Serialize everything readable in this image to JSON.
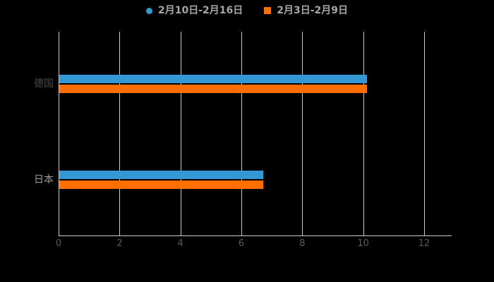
{
  "chart_data": {
    "type": "bar",
    "orientation": "horizontal",
    "title": "",
    "categories": [
      "德国",
      "日本"
    ],
    "series": [
      {
        "name": "2月10日-2月16日",
        "marker": "circle",
        "color": "#3398d4",
        "values": [
          10.1,
          6.7
        ]
      },
      {
        "name": "2月3日-2月9日",
        "marker": "square",
        "color": "#ff6e00",
        "values": [
          10.1,
          6.7
        ]
      }
    ],
    "xlim": [
      0,
      12
    ],
    "xticks": [
      "0",
      "2",
      "4",
      "6",
      "8",
      "10",
      "12"
    ],
    "grid": true,
    "legend_position": "top",
    "background_color": "#000000",
    "gridline_color": "#c9c9c9",
    "axis_line_color": "#cccccc",
    "tick_label_color": "#5a5a5a",
    "category_label_colors": [
      "#4d4d4d",
      "#9c9c9c"
    ],
    "legend_text_color": "#a6a6a6"
  }
}
